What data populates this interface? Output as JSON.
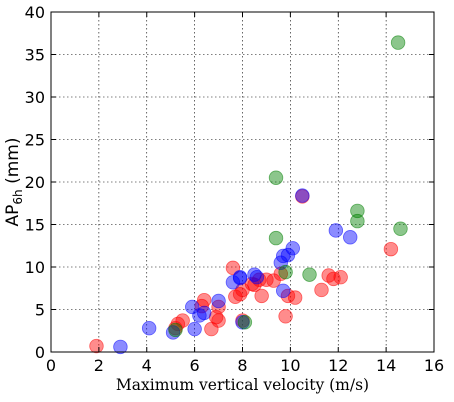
{
  "chart_data": {
    "type": "scatter",
    "title": "",
    "xlabel": "Maximum vertical velocity (m/s)",
    "ylabel": {
      "main": "AP",
      "subscript": "6h",
      "suffix": " (mm)"
    },
    "xlim": [
      0,
      16
    ],
    "ylim": [
      0,
      40
    ],
    "xticks": [
      "0",
      "2",
      "4",
      "6",
      "8",
      "10",
      "12",
      "14",
      "16"
    ],
    "yticks": [
      "0",
      "5",
      "10",
      "15",
      "20",
      "25",
      "30",
      "35",
      "40"
    ],
    "grid": true,
    "legend": "none",
    "series": [
      {
        "color": "#ff0000",
        "points": [
          [
            1.9,
            0.7
          ],
          [
            5.2,
            2.8
          ],
          [
            5.3,
            3.3
          ],
          [
            5.5,
            3.7
          ],
          [
            6.3,
            5.4
          ],
          [
            6.4,
            6.1
          ],
          [
            6.7,
            2.7
          ],
          [
            6.9,
            4.1
          ],
          [
            7.0,
            3.7
          ],
          [
            7.0,
            5.3
          ],
          [
            7.6,
            9.9
          ],
          [
            7.7,
            6.5
          ],
          [
            7.9,
            6.8
          ],
          [
            8.0,
            3.7
          ],
          [
            8.0,
            7.3
          ],
          [
            8.4,
            8.0
          ],
          [
            8.5,
            7.9
          ],
          [
            8.7,
            8.5
          ],
          [
            8.8,
            6.6
          ],
          [
            9.0,
            8.5
          ],
          [
            9.3,
            8.4
          ],
          [
            9.6,
            9.2
          ],
          [
            9.8,
            4.2
          ],
          [
            9.9,
            6.6
          ],
          [
            10.2,
            6.4
          ],
          [
            10.5,
            18.3
          ],
          [
            11.3,
            7.3
          ],
          [
            11.6,
            9.0
          ],
          [
            11.8,
            8.6
          ],
          [
            12.1,
            8.8
          ],
          [
            14.2,
            12.1
          ]
        ]
      },
      {
        "color": "#0000ff",
        "points": [
          [
            2.9,
            0.6
          ],
          [
            4.1,
            2.8
          ],
          [
            5.1,
            2.3
          ],
          [
            5.9,
            5.3
          ],
          [
            6.0,
            2.7
          ],
          [
            6.2,
            4.3
          ],
          [
            6.4,
            4.6
          ],
          [
            7.0,
            6.0
          ],
          [
            7.6,
            8.2
          ],
          [
            7.9,
            8.7
          ],
          [
            7.9,
            8.8
          ],
          [
            8.0,
            3.5
          ],
          [
            8.5,
            9.1
          ],
          [
            8.6,
            8.8
          ],
          [
            9.6,
            10.5
          ],
          [
            9.7,
            7.2
          ],
          [
            9.7,
            11.3
          ],
          [
            9.9,
            11.4
          ],
          [
            10.1,
            12.2
          ],
          [
            10.5,
            18.4
          ],
          [
            11.9,
            14.3
          ],
          [
            12.5,
            13.5
          ]
        ]
      },
      {
        "color": "#008000",
        "points": [
          [
            5.2,
            2.6
          ],
          [
            8.1,
            3.5
          ],
          [
            9.4,
            13.4
          ],
          [
            9.4,
            20.5
          ],
          [
            9.8,
            9.4
          ],
          [
            10.8,
            9.1
          ],
          [
            12.8,
            16.6
          ],
          [
            12.8,
            15.4
          ],
          [
            14.5,
            36.4
          ],
          [
            14.6,
            14.5
          ]
        ]
      }
    ]
  }
}
